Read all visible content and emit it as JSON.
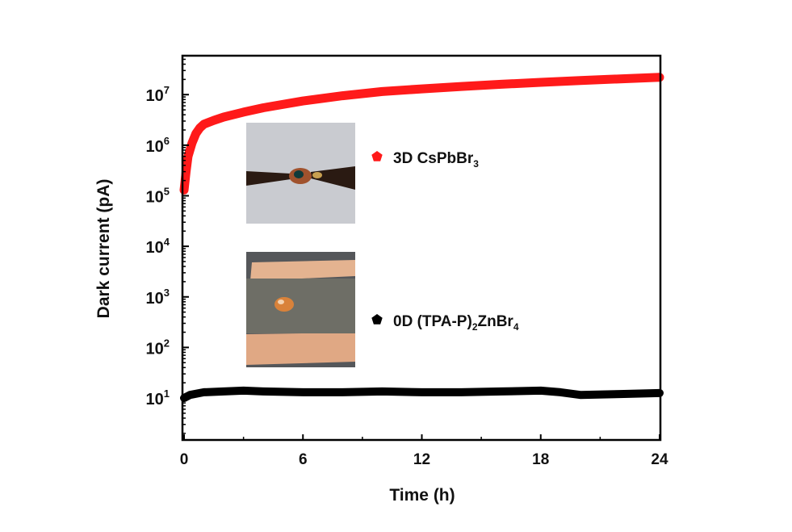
{
  "chart_data": {
    "type": "line",
    "title": "",
    "xlabel": "Time (h)",
    "ylabel": "Dark current (pA)",
    "xlim": [
      0,
      24
    ],
    "ylim_log10": [
      0.17,
      7.77
    ],
    "yscale": "log",
    "x_ticks": [
      0,
      6,
      12,
      18,
      24
    ],
    "x_tick_labels": [
      "0",
      "6",
      "12",
      "18",
      "24"
    ],
    "y_ticks_log10": [
      1,
      2,
      3,
      4,
      5,
      6,
      7
    ],
    "y_tick_base": "10",
    "y_tick_exponents": [
      "1",
      "2",
      "3",
      "4",
      "5",
      "6",
      "7"
    ],
    "grid": false,
    "legend_placement": "center",
    "series": [
      {
        "name_main": "3D CsPbBr",
        "name_sub": "3",
        "color": "#ff1a1a",
        "marker": "pentagon",
        "x": [
          0,
          0.1,
          0.2,
          0.4,
          0.6,
          0.8,
          1,
          1.5,
          2,
          3,
          4,
          6,
          8,
          10,
          12,
          14,
          16,
          18,
          20,
          22,
          24
        ],
        "y": [
          130000,
          300000,
          600000,
          1100000,
          1700000,
          2200000,
          2600000,
          3100000,
          3600000,
          4500000,
          5500000,
          7500000,
          9500000,
          11500000,
          13000000,
          14500000,
          16000000,
          17500000,
          19000000,
          20500000,
          22000000
        ]
      },
      {
        "name_main": "0D (TPA-P)",
        "name_sub": "2",
        "name_main2": "ZnBr",
        "name_sub2": "4",
        "color": "#000000",
        "marker": "pentagon",
        "x": [
          0,
          0.3,
          1,
          2,
          3,
          4,
          6,
          8,
          10,
          12,
          14,
          16,
          18,
          19,
          20,
          22,
          24
        ],
        "y": [
          10,
          11.5,
          13,
          13.5,
          14,
          13.5,
          13,
          13,
          13.5,
          13,
          13,
          13.5,
          14,
          13,
          11.5,
          12,
          12.5
        ]
      }
    ]
  }
}
